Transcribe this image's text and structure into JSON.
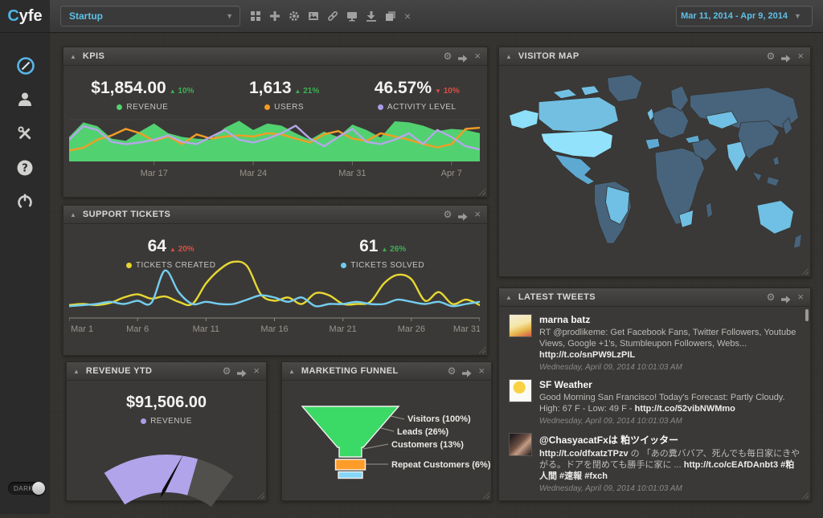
{
  "topbar": {
    "logo": "Cyfe",
    "dashboard_select": "Startup",
    "date_range": "Mar 11, 2014 - Apr 9, 2014",
    "toolbar_icons": [
      "grid-icon",
      "plus-icon",
      "gear-icon",
      "image-icon",
      "link-icon",
      "monitor-icon",
      "download-icon",
      "layers-icon",
      "close-icon"
    ]
  },
  "sidebar": {
    "items": [
      "dashboards",
      "users",
      "tools",
      "help",
      "logout"
    ],
    "dark_toggle_label": "DARK"
  },
  "colors": {
    "accent_blue": "#5fc0e8",
    "green": "#3cb054",
    "red": "#d94f44",
    "revenue_green": "#52d171",
    "users_orange": "#f59b20",
    "activity_purple": "#a99ce8",
    "created_yellow": "#e8d22c",
    "solved_blue": "#6ec9ec"
  },
  "widgets": {
    "kpis": {
      "title": "KPIS",
      "stats": [
        {
          "value": "$1,854.00",
          "arrow": "▲",
          "change": "10%",
          "change_color": "#3cb054",
          "label": "REVENUE",
          "dot": "#52d171"
        },
        {
          "value": "1,613",
          "arrow": "▲",
          "change": "21%",
          "change_color": "#3cb054",
          "label": "USERS",
          "dot": "#f59b20"
        },
        {
          "value": "46.57%",
          "arrow": "▼",
          "change": "10%",
          "change_color": "#d94f44",
          "label": "ACTIVITY LEVEL",
          "dot": "#a99ce8"
        }
      ]
    },
    "support": {
      "title": "SUPPORT TICKETS",
      "stats": [
        {
          "value": "64",
          "arrow": "▲",
          "change": "20%",
          "change_color": "#d94f44",
          "label": "TICKETS CREATED",
          "dot": "#e8d22c"
        },
        {
          "value": "61",
          "arrow": "▲",
          "change": "26%",
          "change_color": "#3cb054",
          "label": "TICKETS SOLVED",
          "dot": "#6ec9ec"
        }
      ]
    },
    "visitor_map": {
      "title": "VISITOR MAP",
      "highlighted_countries": [
        "United States",
        "Alaska (US)",
        "Canada",
        "Mexico",
        "Brazil",
        "United Kingdom",
        "Spain",
        "Kazakhstan",
        "India",
        "South Africa",
        "Australia"
      ]
    },
    "tweets": {
      "title": "LATEST TWEETS",
      "items": [
        {
          "name": "marna batz",
          "avatar": "cartoon",
          "segments": [
            {
              "t": "text",
              "v": "RT @prodlikeme: Get Facebook Fans, Twitter Followers, Youtube Views, Google +1's, Stumbleupon Followers, Webs... "
            },
            {
              "t": "link",
              "v": "http://t.co/snPW9LzPIL"
            }
          ],
          "timestamp": "Wednesday, April 09, 2014 10:01:03 AM"
        },
        {
          "name": "SF Weather",
          "avatar": "weather",
          "segments": [
            {
              "t": "text",
              "v": "Good Morning San Francisco! Today's Forecast: Partly Cloudy. High: 67 F - Low: 49 F - "
            },
            {
              "t": "link",
              "v": "http://t.co/52vibNWMmo"
            }
          ],
          "timestamp": "Wednesday, April 09, 2014 10:01:03 AM"
        },
        {
          "name": "@ChasyacatFxは 粕ツイッター",
          "avatar": "photo",
          "segments": [
            {
              "t": "link",
              "v": "http://t.co/dfxatzTPzv"
            },
            {
              "t": "text",
              "v": " の 「あの糞ババア、死んでも毎日家にきやがる。ドアを閉めても勝手に家に ... "
            },
            {
              "t": "link",
              "v": "http://t.co/cEAfDAnbt3"
            },
            {
              "t": "link",
              "v": " #粕人間 #速報 #fxch"
            }
          ],
          "timestamp": "Wednesday, April 09, 2014 10:01:03 AM"
        }
      ]
    },
    "revenue": {
      "title": "REVENUE YTD",
      "value": "$91,506.00",
      "label": "REVENUE",
      "dot": "#a99ce8"
    },
    "funnel": {
      "title": "MARKETING FUNNEL"
    }
  },
  "chart_data": [
    {
      "id": "kpis",
      "type": "area",
      "x_labels": [
        "Mar 17",
        "Mar 24",
        "Mar 31",
        "Apr 7"
      ],
      "label_indices": [
        6,
        13,
        20,
        27
      ],
      "ylim": [
        0,
        80
      ],
      "grid": true,
      "legend_position": "top",
      "series": [
        {
          "name": "Revenue",
          "kind": "area",
          "color": "#52d171",
          "values": [
            45,
            72,
            65,
            42,
            38,
            55,
            70,
            52,
            45,
            42,
            40,
            62,
            75,
            58,
            70,
            66,
            52,
            40,
            55,
            45,
            68,
            58,
            44,
            74,
            72,
            66,
            56,
            60,
            58,
            52
          ]
        },
        {
          "name": "Users",
          "kind": "line",
          "color": "#f29d25",
          "values": [
            20,
            25,
            40,
            48,
            60,
            52,
            38,
            46,
            32,
            50,
            42,
            46,
            48,
            46,
            52,
            50,
            42,
            35,
            50,
            56,
            42,
            38,
            52,
            46,
            40,
            32,
            26,
            32,
            60,
            62
          ]
        },
        {
          "name": "Activity Level",
          "kind": "line",
          "color": "#b4a7ea",
          "values": [
            40,
            65,
            58,
            36,
            32,
            35,
            40,
            48,
            36,
            32,
            45,
            58,
            40,
            35,
            42,
            52,
            66,
            42,
            28,
            45,
            60,
            36,
            32,
            40,
            52,
            32,
            58,
            45,
            28,
            22
          ]
        }
      ]
    },
    {
      "id": "support",
      "type": "line",
      "smooth": true,
      "x_labels": [
        "Mar 1",
        "Mar 6",
        "Mar 11",
        "Mar 16",
        "Mar 21",
        "Mar 26",
        "Mar 31"
      ],
      "label_indices": [
        0,
        5,
        10,
        15,
        20,
        25,
        30
      ],
      "ylim": [
        0,
        55
      ],
      "legend_position": "top",
      "series": [
        {
          "name": "Tickets Created",
          "color": "#e7d832",
          "values": [
            12,
            13,
            12,
            14,
            19,
            22,
            18,
            20,
            15,
            13,
            32,
            45,
            52,
            48,
            22,
            16,
            19,
            13,
            23,
            21,
            13,
            13,
            15,
            32,
            40,
            36,
            16,
            24,
            13,
            17,
            12
          ]
        },
        {
          "name": "Tickets Solved",
          "color": "#74cdef",
          "values": [
            11,
            12,
            13,
            15,
            13,
            16,
            14,
            44,
            24,
            13,
            15,
            13,
            13,
            17,
            21,
            19,
            15,
            19,
            11,
            13,
            13,
            15,
            13,
            13,
            17,
            15,
            13,
            15,
            11,
            13,
            15
          ]
        }
      ]
    },
    {
      "id": "revenue_gauge",
      "type": "gauge",
      "value": "$91,506.00",
      "percent": 0.71,
      "fill_color": "#b2a4ea",
      "track_color": "#52504c",
      "needle_color": "#0c0c0c"
    },
    {
      "id": "funnel",
      "type": "funnel",
      "stages": [
        {
          "label": "Visitors (100%)",
          "pct": 100,
          "color": "#3bd965"
        },
        {
          "label": "Leads (26%)",
          "pct": 26,
          "color": "#3bd965"
        },
        {
          "label": "Customers (13%)",
          "pct": 13,
          "color": "#fd9c28"
        },
        {
          "label": "Repeat Customers (6%)",
          "pct": 6,
          "color": "#85d6f7"
        }
      ]
    }
  ]
}
